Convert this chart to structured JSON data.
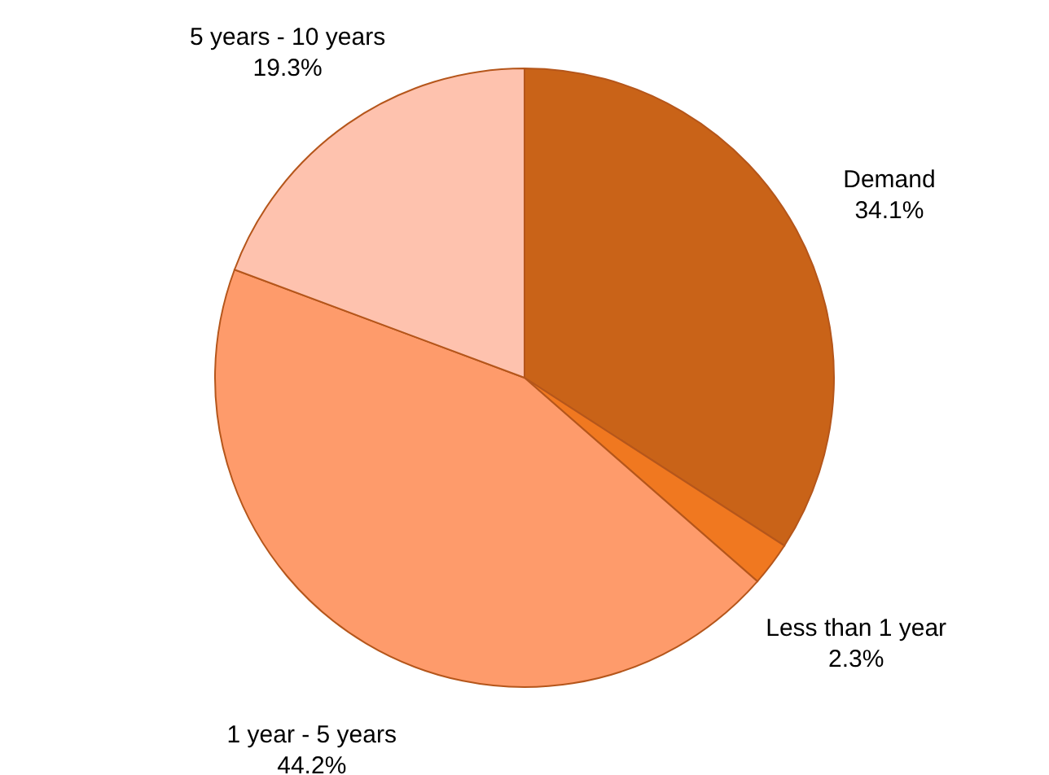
{
  "chart_data": {
    "type": "pie",
    "categories": [
      "Demand",
      "Less than 1 year",
      "1 year - 5 years",
      "5 years - 10 years"
    ],
    "values": [
      34.1,
      2.3,
      44.2,
      19.3
    ],
    "colors": [
      "#c96318",
      "#f07820",
      "#fe9b6b",
      "#fec2ae"
    ],
    "value_labels": [
      "34.1%",
      "2.3%",
      "44.2%",
      "19.3%"
    ]
  }
}
